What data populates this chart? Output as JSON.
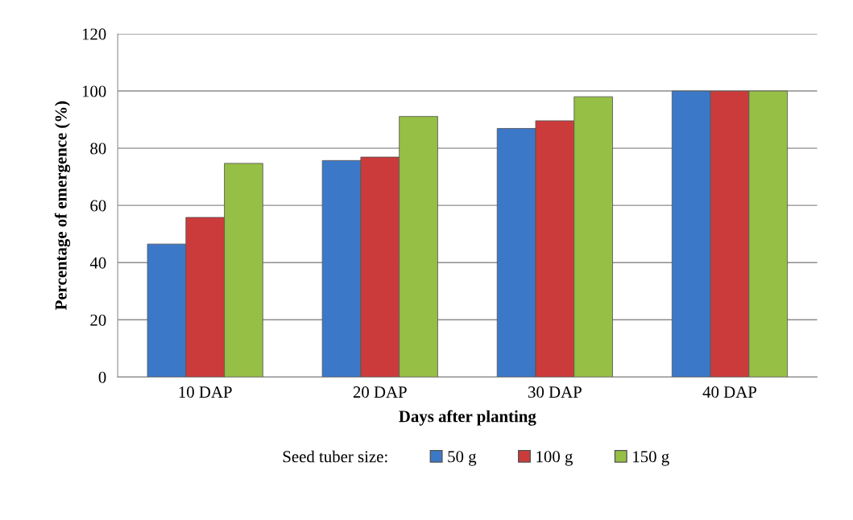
{
  "chart_data": {
    "type": "bar",
    "xlabel": "Days after planting",
    "ylabel": "Percentage of emergence (%)",
    "categories": [
      "10 DAP",
      "20 DAP",
      "30 DAP",
      "40 DAP"
    ],
    "series": [
      {
        "name": "50 g",
        "color": "#3c78c8",
        "values": [
          46.5,
          75.7,
          86.9,
          100
        ]
      },
      {
        "name": "100 g",
        "color": "#cc3b3b",
        "values": [
          55.8,
          76.9,
          89.6,
          100
        ]
      },
      {
        "name": "150 g",
        "color": "#96bf45",
        "values": [
          74.7,
          91.1,
          98.0,
          100
        ]
      }
    ],
    "legend_title": "Seed tuber size:",
    "legend": "bottom",
    "ylim": [
      0,
      120
    ],
    "yticks": [
      0,
      20,
      40,
      60,
      80,
      100,
      120
    ],
    "grid": "y"
  }
}
